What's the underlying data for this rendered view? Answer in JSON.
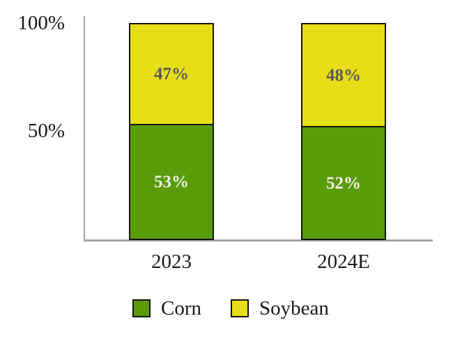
{
  "chart_data": {
    "type": "bar",
    "stacked": true,
    "orientation": "vertical",
    "categories": [
      "2023",
      "2024E"
    ],
    "series": [
      {
        "name": "Corn",
        "color": "#5a9b0a",
        "values": [
          53,
          52
        ],
        "value_labels": [
          "53%",
          "52%"
        ],
        "value_label_color": "#f2f2e6"
      },
      {
        "name": "Soybean",
        "color": "#e8de16",
        "values": [
          47,
          48
        ],
        "value_labels": [
          "47%",
          "48%"
        ],
        "value_label_color": "#595959"
      }
    ],
    "title": "",
    "xlabel": "",
    "ylabel": "",
    "ylim": [
      0,
      100
    ],
    "ytick_labels": [
      "100%",
      "50%"
    ],
    "grid": false,
    "legend_position": "bottom",
    "axis_color": "#a6a6a6",
    "bar_border_color": "#141414",
    "background_color": "#ffffff"
  }
}
